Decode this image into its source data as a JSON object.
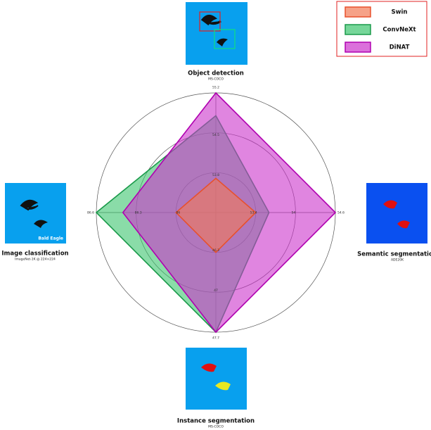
{
  "chart_data": {
    "type": "radar",
    "axes": [
      {
        "name": "Object detection",
        "subtitle": "MS-COCO",
        "lim": [
          53.1,
          55.2
        ],
        "ticks": [
          53.8,
          54.5,
          55.2
        ]
      },
      {
        "name": "Semantic segmentation",
        "subtitle": "ADE20K",
        "lim": [
          52.8,
          54.6
        ],
        "ticks": [
          53.4,
          54.0,
          54.6
        ]
      },
      {
        "name": "Instance segmentation",
        "subtitle": "MS-COCO",
        "lim": [
          45.6,
          47.7
        ],
        "ticks": [
          46.3,
          47.0,
          47.7
        ]
      },
      {
        "name": "Image classification",
        "subtitle": "ImageNet-1K @ 224×224",
        "image_caption": "Bald Eagle",
        "lim": [
          85.7,
          86.6
        ],
        "ticks": [
          86.0,
          86.3,
          86.6
        ]
      }
    ],
    "series": [
      {
        "name": "ConvNeXt",
        "color": "#1a9a4a",
        "fill": "#3cc46e",
        "values": [
          54.8,
          53.6,
          47.7,
          86.6
        ]
      },
      {
        "name": "DiNAT",
        "color": "#b000b0",
        "fill": "#cc33cc",
        "values": [
          55.2,
          54.6,
          47.7,
          86.4
        ]
      },
      {
        "name": "Swin",
        "color": "#e8502c",
        "fill": "#f27a55",
        "values": [
          53.7,
          53.4,
          46.3,
          86.0
        ]
      }
    ],
    "legend_order": [
      2,
      0,
      1
    ],
    "grid": true
  }
}
